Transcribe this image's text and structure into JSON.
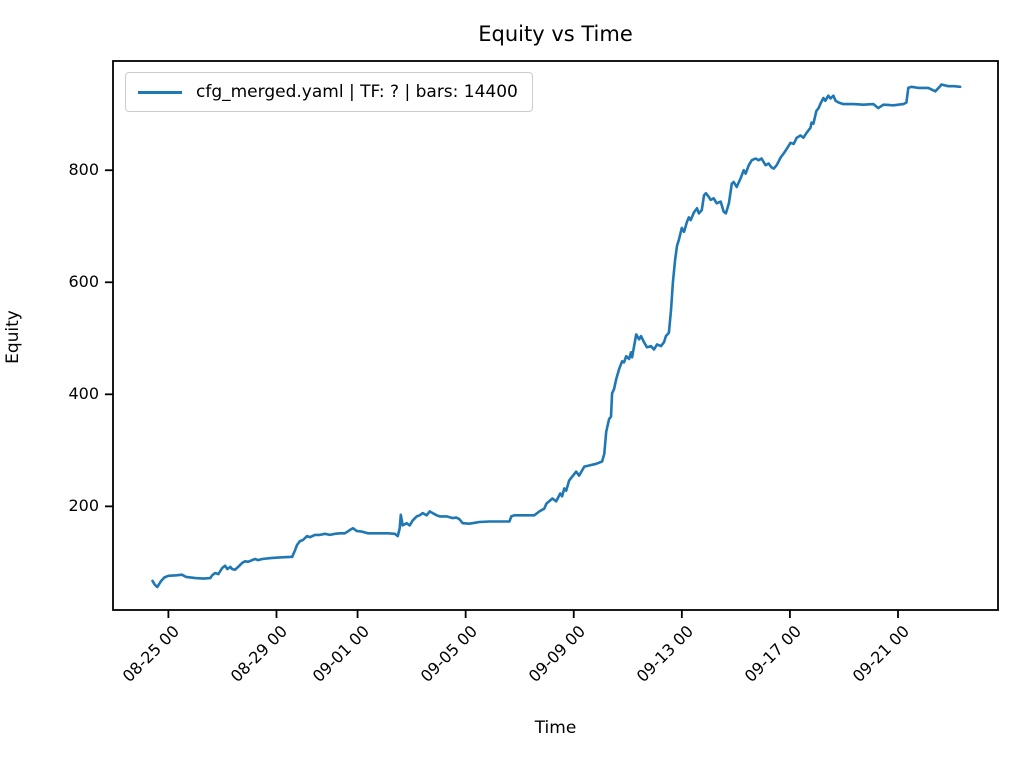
{
  "chart_data": {
    "type": "line",
    "title": "Equity vs Time",
    "xlabel": "Time",
    "ylabel": "Equity",
    "legend": [
      "cfg_merged.yaml | TF: ? | bars: 14400"
    ],
    "legend_position": "upper left",
    "grid": false,
    "line_color": "#1f77b4",
    "xlim": [
      -1.05,
      31.7
    ],
    "ylim": [
      15,
      995
    ],
    "x_unit": "days since 08-24 00:00",
    "x_ticks": [
      {
        "day": 1,
        "label": "08-25 00"
      },
      {
        "day": 5,
        "label": "08-29 00"
      },
      {
        "day": 8,
        "label": "09-01 00"
      },
      {
        "day": 12,
        "label": "09-05 00"
      },
      {
        "day": 16,
        "label": "09-09 00"
      },
      {
        "day": 20,
        "label": "09-13 00"
      },
      {
        "day": 24,
        "label": "09-17 00"
      },
      {
        "day": 28,
        "label": "09-21 00"
      }
    ],
    "y_ticks": [
      200,
      400,
      600,
      800
    ],
    "series": [
      {
        "name": "cfg_merged.yaml | TF: ? | bars: 14400",
        "points": [
          [
            0.41,
            67
          ],
          [
            0.5,
            60
          ],
          [
            0.59,
            56
          ],
          [
            0.72,
            66
          ],
          [
            0.85,
            73
          ],
          [
            1.0,
            76
          ],
          [
            1.3,
            77
          ],
          [
            1.5,
            78
          ],
          [
            1.65,
            74
          ],
          [
            2.0,
            72
          ],
          [
            2.3,
            71
          ],
          [
            2.55,
            72
          ],
          [
            2.62,
            77
          ],
          [
            2.73,
            81
          ],
          [
            2.85,
            79
          ],
          [
            2.99,
            90
          ],
          [
            3.1,
            94
          ],
          [
            3.18,
            88
          ],
          [
            3.29,
            92
          ],
          [
            3.36,
            88
          ],
          [
            3.47,
            87
          ],
          [
            3.58,
            92
          ],
          [
            3.73,
            99
          ],
          [
            3.84,
            102
          ],
          [
            3.95,
            101
          ],
          [
            4.1,
            104
          ],
          [
            4.21,
            106
          ],
          [
            4.32,
            104
          ],
          [
            4.47,
            106
          ],
          [
            4.84,
            108
          ],
          [
            5.21,
            109
          ],
          [
            5.58,
            110
          ],
          [
            5.69,
            122
          ],
          [
            5.76,
            131
          ],
          [
            5.87,
            138
          ],
          [
            5.98,
            140
          ],
          [
            6.13,
            147
          ],
          [
            6.24,
            145
          ],
          [
            6.42,
            149
          ],
          [
            6.61,
            149
          ],
          [
            6.79,
            151
          ],
          [
            6.98,
            149
          ],
          [
            7.16,
            151
          ],
          [
            7.35,
            152
          ],
          [
            7.53,
            152
          ],
          [
            7.72,
            158
          ],
          [
            7.83,
            161
          ],
          [
            7.97,
            156
          ],
          [
            8.16,
            155
          ],
          [
            8.38,
            152
          ],
          [
            8.75,
            152
          ],
          [
            9.12,
            152
          ],
          [
            9.38,
            151
          ],
          [
            9.49,
            147
          ],
          [
            9.56,
            161
          ],
          [
            9.6,
            185
          ],
          [
            9.67,
            166
          ],
          [
            9.82,
            170
          ],
          [
            9.93,
            166
          ],
          [
            10.04,
            175
          ],
          [
            10.19,
            182
          ],
          [
            10.3,
            184
          ],
          [
            10.41,
            188
          ],
          [
            10.56,
            184
          ],
          [
            10.67,
            191
          ],
          [
            10.78,
            188
          ],
          [
            10.93,
            184
          ],
          [
            11.04,
            182
          ],
          [
            11.3,
            182
          ],
          [
            11.52,
            179
          ],
          [
            11.66,
            180
          ],
          [
            11.77,
            177
          ],
          [
            11.89,
            170
          ],
          [
            12.14,
            169
          ],
          [
            12.51,
            172
          ],
          [
            12.88,
            173
          ],
          [
            13.25,
            173
          ],
          [
            13.62,
            173
          ],
          [
            13.69,
            182
          ],
          [
            13.8,
            184
          ],
          [
            14.17,
            184
          ],
          [
            14.54,
            184
          ],
          [
            14.73,
            191
          ],
          [
            14.91,
            196
          ],
          [
            14.99,
            205
          ],
          [
            15.21,
            214
          ],
          [
            15.35,
            209
          ],
          [
            15.5,
            223
          ],
          [
            15.57,
            218
          ],
          [
            15.65,
            232
          ],
          [
            15.72,
            228
          ],
          [
            15.83,
            246
          ],
          [
            16.09,
            262
          ],
          [
            16.2,
            255
          ],
          [
            16.39,
            271
          ],
          [
            16.57,
            273
          ],
          [
            16.83,
            276
          ],
          [
            17.05,
            280
          ],
          [
            17.13,
            294
          ],
          [
            17.2,
            333
          ],
          [
            17.31,
            356
          ],
          [
            17.38,
            360
          ],
          [
            17.42,
            402
          ],
          [
            17.49,
            409
          ],
          [
            17.57,
            427
          ],
          [
            17.68,
            445
          ],
          [
            17.79,
            459
          ],
          [
            17.86,
            457
          ],
          [
            17.94,
            468
          ],
          [
            18.05,
            463
          ],
          [
            18.12,
            475
          ],
          [
            18.16,
            466
          ],
          [
            18.31,
            507
          ],
          [
            18.42,
            498
          ],
          [
            18.49,
            504
          ],
          [
            18.6,
            493
          ],
          [
            18.71,
            484
          ],
          [
            18.86,
            486
          ],
          [
            18.97,
            480
          ],
          [
            19.08,
            489
          ],
          [
            19.23,
            486
          ],
          [
            19.34,
            493
          ],
          [
            19.41,
            504
          ],
          [
            19.52,
            510
          ],
          [
            19.6,
            550
          ],
          [
            19.67,
            600
          ],
          [
            19.75,
            640
          ],
          [
            19.82,
            665
          ],
          [
            19.89,
            676
          ],
          [
            20.0,
            697
          ],
          [
            20.08,
            690
          ],
          [
            20.19,
            708
          ],
          [
            20.26,
            716
          ],
          [
            20.33,
            711
          ],
          [
            20.45,
            725
          ],
          [
            20.56,
            732
          ],
          [
            20.63,
            723
          ],
          [
            20.74,
            729
          ],
          [
            20.82,
            755
          ],
          [
            20.89,
            759
          ],
          [
            21.0,
            752
          ],
          [
            21.07,
            747
          ],
          [
            21.18,
            750
          ],
          [
            21.29,
            741
          ],
          [
            21.44,
            744
          ],
          [
            21.55,
            726
          ],
          [
            21.63,
            723
          ],
          [
            21.74,
            741
          ],
          [
            21.85,
            776
          ],
          [
            21.92,
            779
          ],
          [
            22.03,
            770
          ],
          [
            22.18,
            786
          ],
          [
            22.29,
            800
          ],
          [
            22.36,
            794
          ],
          [
            22.48,
            809
          ],
          [
            22.59,
            818
          ],
          [
            22.73,
            821
          ],
          [
            22.84,
            818
          ],
          [
            22.95,
            821
          ],
          [
            23.1,
            809
          ],
          [
            23.21,
            812
          ],
          [
            23.32,
            805
          ],
          [
            23.4,
            803
          ],
          [
            23.51,
            809
          ],
          [
            23.66,
            823
          ],
          [
            23.77,
            830
          ],
          [
            23.88,
            838
          ],
          [
            24.02,
            849
          ],
          [
            24.14,
            847
          ],
          [
            24.25,
            858
          ],
          [
            24.39,
            862
          ],
          [
            24.5,
            858
          ],
          [
            24.62,
            867
          ],
          [
            24.76,
            876
          ],
          [
            24.8,
            885
          ],
          [
            24.87,
            883
          ],
          [
            24.98,
            906
          ],
          [
            25.06,
            911
          ],
          [
            25.13,
            919
          ],
          [
            25.24,
            929
          ],
          [
            25.31,
            924
          ],
          [
            25.42,
            933
          ],
          [
            25.5,
            928
          ],
          [
            25.61,
            933
          ],
          [
            25.69,
            924
          ],
          [
            25.8,
            921
          ],
          [
            25.98,
            918
          ],
          [
            26.35,
            918
          ],
          [
            26.72,
            917
          ],
          [
            27.09,
            918
          ],
          [
            27.27,
            911
          ],
          [
            27.46,
            917
          ],
          [
            27.83,
            916
          ],
          [
            28.2,
            918
          ],
          [
            28.31,
            921
          ],
          [
            28.38,
            947
          ],
          [
            28.49,
            949
          ],
          [
            28.75,
            947
          ],
          [
            29.12,
            947
          ],
          [
            29.38,
            941
          ],
          [
            29.56,
            950
          ],
          [
            29.6,
            953
          ],
          [
            29.86,
            950
          ],
          [
            30.08,
            950
          ],
          [
            30.3,
            949
          ]
        ]
      }
    ]
  }
}
